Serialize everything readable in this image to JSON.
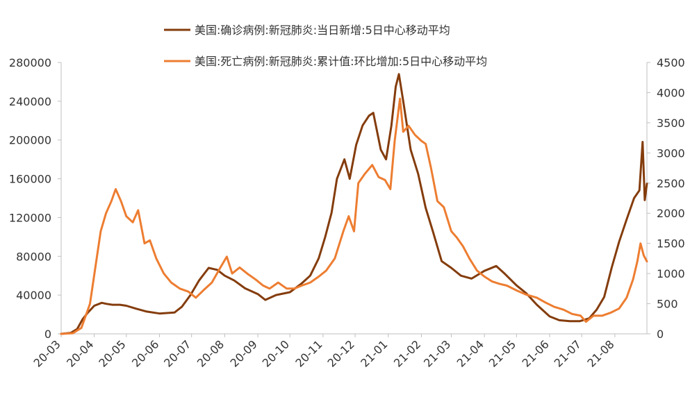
{
  "chart_data": {
    "type": "line",
    "title": "",
    "xlabel": "",
    "ylabel_left": "",
    "ylabel_right": "",
    "x_tick_labels": [
      "20-03",
      "20-04",
      "20-05",
      "20-06",
      "20-07",
      "20-08",
      "20-09",
      "20-10",
      "20-11",
      "20-12",
      "21-01",
      "21-02",
      "21-03",
      "21-04",
      "21-05",
      "21-06",
      "21-07",
      "21-08"
    ],
    "y_left": {
      "lim": [
        0,
        280000
      ],
      "ticks": [
        0,
        40000,
        80000,
        120000,
        160000,
        200000,
        240000,
        280000
      ]
    },
    "y_right": {
      "lim": [
        0,
        4500
      ],
      "ticks": [
        0,
        500,
        1000,
        1500,
        2000,
        2500,
        3000,
        3500,
        4000,
        4500
      ]
    },
    "legend_position": "top-center",
    "grid": false,
    "series": [
      {
        "name": "美国:确诊病例:新冠肺炎:当日新增:5日中心移动平均",
        "axis": "left",
        "color": "#843c0c",
        "points": [
          [
            "2020-03-01",
            0
          ],
          [
            "2020-03-10",
            1000
          ],
          [
            "2020-03-16",
            5000
          ],
          [
            "2020-03-21",
            15000
          ],
          [
            "2020-03-26",
            22000
          ],
          [
            "2020-04-01",
            29000
          ],
          [
            "2020-04-08",
            32000
          ],
          [
            "2020-04-12",
            31000
          ],
          [
            "2020-04-18",
            30000
          ],
          [
            "2020-04-25",
            30000
          ],
          [
            "2020-05-01",
            29000
          ],
          [
            "2020-05-10",
            26000
          ],
          [
            "2020-05-20",
            23000
          ],
          [
            "2020-06-01",
            21000
          ],
          [
            "2020-06-15",
            22000
          ],
          [
            "2020-06-22",
            28000
          ],
          [
            "2020-06-30",
            40000
          ],
          [
            "2020-07-08",
            55000
          ],
          [
            "2020-07-17",
            68000
          ],
          [
            "2020-07-25",
            66000
          ],
          [
            "2020-08-01",
            60000
          ],
          [
            "2020-08-10",
            55000
          ],
          [
            "2020-08-20",
            47000
          ],
          [
            "2020-09-01",
            41000
          ],
          [
            "2020-09-08",
            35000
          ],
          [
            "2020-09-18",
            40000
          ],
          [
            "2020-10-01",
            43000
          ],
          [
            "2020-10-12",
            52000
          ],
          [
            "2020-10-20",
            60000
          ],
          [
            "2020-10-28",
            78000
          ],
          [
            "2020-11-03",
            100000
          ],
          [
            "2020-11-09",
            125000
          ],
          [
            "2020-11-14",
            160000
          ],
          [
            "2020-11-21",
            180000
          ],
          [
            "2020-11-26",
            160000
          ],
          [
            "2020-12-02",
            195000
          ],
          [
            "2020-12-08",
            215000
          ],
          [
            "2020-12-14",
            225000
          ],
          [
            "2020-12-18",
            228000
          ],
          [
            "2020-12-25",
            190000
          ],
          [
            "2020-12-30",
            180000
          ],
          [
            "2021-01-04",
            215000
          ],
          [
            "2021-01-08",
            255000
          ],
          [
            "2021-01-11",
            268000
          ],
          [
            "2021-01-15",
            240000
          ],
          [
            "2021-01-22",
            190000
          ],
          [
            "2021-01-29",
            165000
          ],
          [
            "2021-02-05",
            130000
          ],
          [
            "2021-02-12",
            105000
          ],
          [
            "2021-02-20",
            75000
          ],
          [
            "2021-03-01",
            68000
          ],
          [
            "2021-03-10",
            60000
          ],
          [
            "2021-03-20",
            57000
          ],
          [
            "2021-04-01",
            65000
          ],
          [
            "2021-04-12",
            70000
          ],
          [
            "2021-04-20",
            62000
          ],
          [
            "2021-05-01",
            50000
          ],
          [
            "2021-05-10",
            42000
          ],
          [
            "2021-05-20",
            30000
          ],
          [
            "2021-06-01",
            18000
          ],
          [
            "2021-06-10",
            14000
          ],
          [
            "2021-06-20",
            13000
          ],
          [
            "2021-06-29",
            13000
          ],
          [
            "2021-07-08",
            16000
          ],
          [
            "2021-07-15",
            25000
          ],
          [
            "2021-07-22",
            38000
          ],
          [
            "2021-07-29",
            68000
          ],
          [
            "2021-08-05",
            95000
          ],
          [
            "2021-08-12",
            118000
          ],
          [
            "2021-08-19",
            140000
          ],
          [
            "2021-08-24",
            148000
          ],
          [
            "2021-08-27",
            198000
          ],
          [
            "2021-08-29",
            138000
          ],
          [
            "2021-08-31",
            155000
          ]
        ]
      },
      {
        "name": "美国:死亡病例:新冠肺炎:累计值:环比增加:5日中心移动平均",
        "axis": "right",
        "color": "#ed7d31",
        "points": [
          [
            "2020-03-01",
            0
          ],
          [
            "2020-03-12",
            10
          ],
          [
            "2020-03-20",
            100
          ],
          [
            "2020-03-28",
            500
          ],
          [
            "2020-04-02",
            1100
          ],
          [
            "2020-04-07",
            1700
          ],
          [
            "2020-04-12",
            2000
          ],
          [
            "2020-04-17",
            2200
          ],
          [
            "2020-04-21",
            2400
          ],
          [
            "2020-04-26",
            2200
          ],
          [
            "2020-05-01",
            1950
          ],
          [
            "2020-05-07",
            1850
          ],
          [
            "2020-05-12",
            2050
          ],
          [
            "2020-05-18",
            1500
          ],
          [
            "2020-05-23",
            1550
          ],
          [
            "2020-05-29",
            1250
          ],
          [
            "2020-06-05",
            1000
          ],
          [
            "2020-06-12",
            850
          ],
          [
            "2020-06-20",
            750
          ],
          [
            "2020-06-28",
            700
          ],
          [
            "2020-07-05",
            600
          ],
          [
            "2020-07-12",
            720
          ],
          [
            "2020-07-20",
            850
          ],
          [
            "2020-07-28",
            1100
          ],
          [
            "2020-08-03",
            1280
          ],
          [
            "2020-08-08",
            1000
          ],
          [
            "2020-08-15",
            1100
          ],
          [
            "2020-08-22",
            1000
          ],
          [
            "2020-08-30",
            900
          ],
          [
            "2020-09-06",
            800
          ],
          [
            "2020-09-12",
            750
          ],
          [
            "2020-09-20",
            850
          ],
          [
            "2020-09-28",
            750
          ],
          [
            "2020-10-05",
            750
          ],
          [
            "2020-10-12",
            800
          ],
          [
            "2020-10-20",
            850
          ],
          [
            "2020-10-28",
            950
          ],
          [
            "2020-11-04",
            1050
          ],
          [
            "2020-11-12",
            1250
          ],
          [
            "2020-11-20",
            1700
          ],
          [
            "2020-11-25",
            1950
          ],
          [
            "2020-11-30",
            1700
          ],
          [
            "2020-12-04",
            2500
          ],
          [
            "2020-12-10",
            2650
          ],
          [
            "2020-12-17",
            2800
          ],
          [
            "2020-12-23",
            2600
          ],
          [
            "2020-12-29",
            2550
          ],
          [
            "2021-01-03",
            2400
          ],
          [
            "2021-01-07",
            3200
          ],
          [
            "2021-01-12",
            3900
          ],
          [
            "2021-01-15",
            3350
          ],
          [
            "2021-01-20",
            3450
          ],
          [
            "2021-01-26",
            3300
          ],
          [
            "2021-02-01",
            3200
          ],
          [
            "2021-02-05",
            3150
          ],
          [
            "2021-02-10",
            2750
          ],
          [
            "2021-02-16",
            2200
          ],
          [
            "2021-02-22",
            2100
          ],
          [
            "2021-03-01",
            1700
          ],
          [
            "2021-03-06",
            1600
          ],
          [
            "2021-03-12",
            1450
          ],
          [
            "2021-03-18",
            1250
          ],
          [
            "2021-03-25",
            1050
          ],
          [
            "2021-04-01",
            950
          ],
          [
            "2021-04-08",
            870
          ],
          [
            "2021-04-15",
            830
          ],
          [
            "2021-04-22",
            800
          ],
          [
            "2021-05-01",
            720
          ],
          [
            "2021-05-10",
            650
          ],
          [
            "2021-05-20",
            600
          ],
          [
            "2021-05-28",
            520
          ],
          [
            "2021-06-05",
            450
          ],
          [
            "2021-06-14",
            400
          ],
          [
            "2021-06-22",
            330
          ],
          [
            "2021-06-30",
            300
          ],
          [
            "2021-07-05",
            200
          ],
          [
            "2021-07-12",
            300
          ],
          [
            "2021-07-20",
            300
          ],
          [
            "2021-07-28",
            350
          ],
          [
            "2021-08-05",
            420
          ],
          [
            "2021-08-12",
            600
          ],
          [
            "2021-08-18",
            900
          ],
          [
            "2021-08-22",
            1200
          ],
          [
            "2021-08-25",
            1500
          ],
          [
            "2021-08-28",
            1300
          ],
          [
            "2021-08-31",
            1200
          ]
        ]
      }
    ]
  }
}
